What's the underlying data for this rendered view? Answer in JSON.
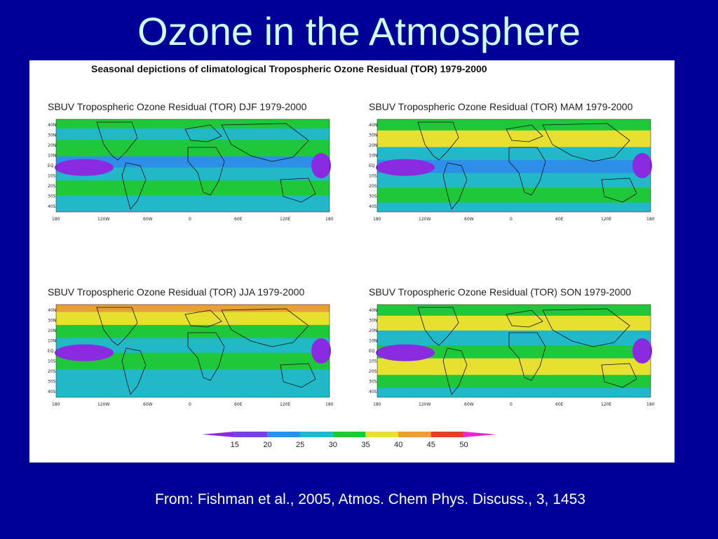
{
  "slide": {
    "title": "Ozone in the Atmosphere",
    "citation": "From:  Fishman et al., 2005, Atmos. Chem Phys. Discuss., 3, 1453"
  },
  "figure": {
    "title": "Seasonal depictions of climatological Tropospheric Ozone Residual (TOR) 1979-2000",
    "maps": [
      {
        "title": "SBUV Tropospheric Ozone Residual (TOR) DJF 1979-2000",
        "season": "DJF"
      },
      {
        "title": "SBUV Tropospheric Ozone Residual (TOR) MAM 1979-2000",
        "season": "MAM"
      },
      {
        "title": "SBUV Tropospheric Ozone Residual (TOR) JJA 1979-2000",
        "season": "JJA"
      },
      {
        "title": "SBUV Tropospheric Ozone Residual (TOR) SON 1979-2000",
        "season": "SON"
      }
    ],
    "lat_labels": [
      "40N",
      "30N",
      "20N",
      "10N",
      "EQ",
      "10S",
      "20S",
      "30S",
      "40S"
    ],
    "lon_labels": [
      "180",
      "120W",
      "60W",
      "0",
      "60E",
      "120E",
      "180"
    ],
    "colorbar": {
      "ticks": [
        "15",
        "20",
        "25",
        "30",
        "35",
        "40",
        "45",
        "50"
      ],
      "colors": [
        "#8a2be2",
        "#7a3fe0",
        "#2d8fe8",
        "#21b8c8",
        "#1fc83a",
        "#e8e030",
        "#e8a030",
        "#e83a30",
        "#e02ad0"
      ]
    }
  }
}
